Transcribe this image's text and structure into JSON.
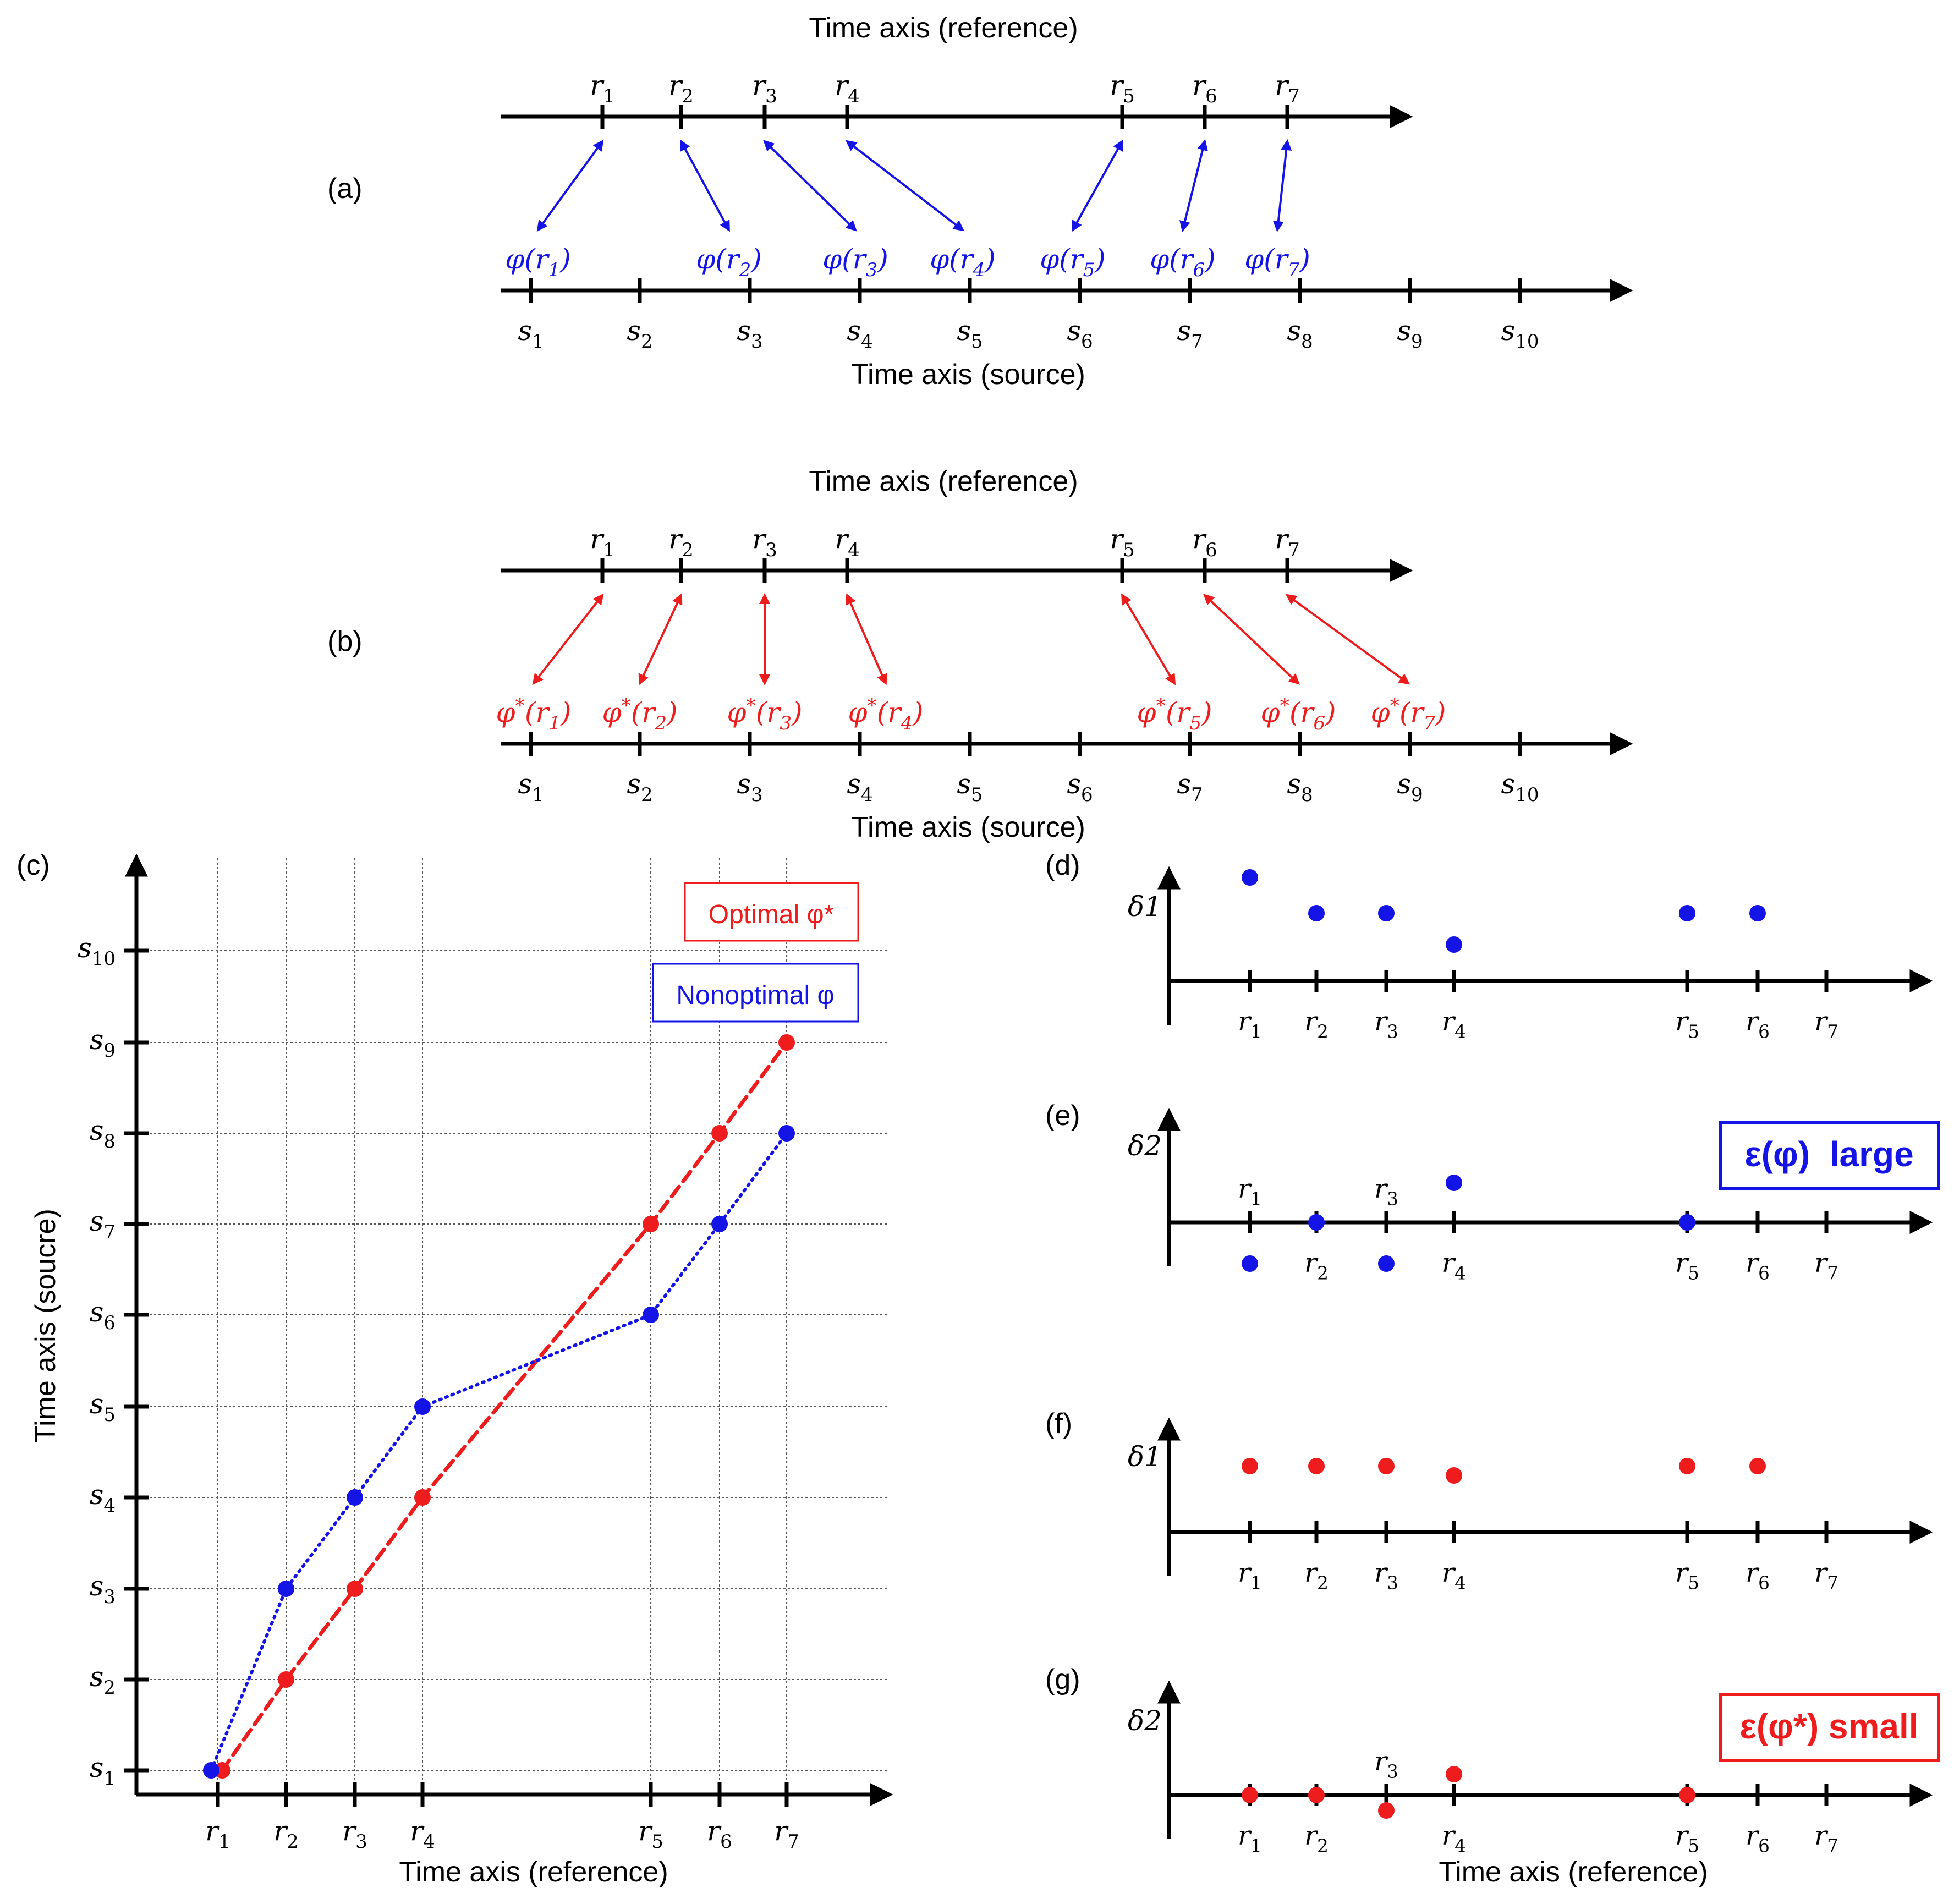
{
  "colors": {
    "blue": "#1414e6",
    "red": "#ee1c1c",
    "black": "#000000",
    "grid": "#555555"
  },
  "panel_labels": {
    "a": "(a)",
    "b": "(b)",
    "c": "(c)",
    "d": "(d)",
    "e": "(e)",
    "f": "(f)",
    "g": "(g)"
  },
  "axis_titles": {
    "reference": "Time axis (reference)",
    "source": "Time axis (source)",
    "source_misspelled": "Time axis (soucre)"
  },
  "ref_ticks": [
    "r1",
    "r2",
    "r3",
    "r4",
    "r5",
    "r6",
    "r7"
  ],
  "src_ticks": [
    "s1",
    "s2",
    "s3",
    "s4",
    "s5",
    "s6",
    "s7",
    "s8",
    "s9",
    "s10"
  ],
  "panel_a": {
    "mapping_labels": [
      "φ(r1)",
      "φ(r2)",
      "φ(r3)",
      "φ(r4)",
      "φ(r5)",
      "φ(r6)",
      "φ(r7)"
    ],
    "mapped_source_index": [
      1,
      3,
      4,
      5,
      6,
      7,
      8
    ]
  },
  "panel_b": {
    "mapping_labels": [
      "φ*(r1)",
      "φ*(r2)",
      "φ*(r3)",
      "φ*(r4)",
      "φ*(r5)",
      "φ*(r6)",
      "φ*(r7)"
    ],
    "mapped_source_index": [
      1,
      2,
      3,
      4,
      7,
      8,
      9
    ]
  },
  "legend": {
    "optimal": "Optimal φ*",
    "nonoptimal": "Nonoptimal φ"
  },
  "delta_labels": {
    "d1": "δ1",
    "d2": "δ2"
  },
  "error_boxes": {
    "large": "ε(φ)  large",
    "small": "ε(φ*) small"
  },
  "chart_data": {
    "type": "line",
    "title": "",
    "xlabel": "Time axis (reference)",
    "ylabel": "Time axis (soucre)",
    "x_categories": [
      "r1",
      "r2",
      "r3",
      "r4",
      "r5",
      "r6",
      "r7"
    ],
    "y_categories": [
      "s1",
      "s2",
      "s3",
      "s4",
      "s5",
      "s6",
      "s7",
      "s8",
      "s9",
      "s10"
    ],
    "series": [
      {
        "name": "Optimal φ*",
        "style": "dashed",
        "color": "#ee1c1c",
        "values": [
          1,
          2,
          3,
          4,
          7,
          8,
          9
        ]
      },
      {
        "name": "Nonoptimal φ",
        "style": "dotted",
        "color": "#1414e6",
        "values": [
          1,
          3,
          4,
          5,
          6,
          7,
          8
        ]
      }
    ],
    "grid": true
  }
}
